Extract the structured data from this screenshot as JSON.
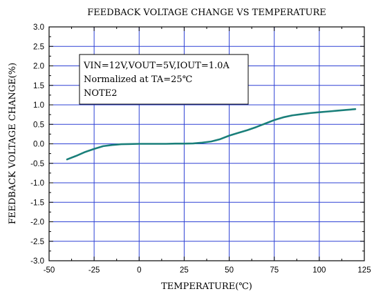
{
  "chart_data": {
    "type": "line",
    "title": "FEEDBACK VOLTAGE CHANGE VS TEMPERATURE",
    "xlabel": "TEMPERATURE(℃)",
    "ylabel": "FEEDBACK VOLTAGE CHANGE(%)",
    "xlim": [
      -50,
      125
    ],
    "ylim": [
      -3.0,
      3.0
    ],
    "xticks": [
      "-50",
      "-25",
      "0",
      "25",
      "50",
      "75",
      "100",
      "125"
    ],
    "yticks": [
      "3.0",
      "2.5",
      "2.0",
      "1.5",
      "1.0",
      "0.5",
      "0.0",
      "-0.5",
      "-1.0",
      "-1.5",
      "-2.0",
      "-2.5",
      "-3.0"
    ],
    "grid": true,
    "annotation": [
      "VIN=12V,VOUT=5V,IOUT=1.0A",
      "Normalized at TA=25℃",
      "NOTE2"
    ],
    "series": [
      {
        "x": [
          -40,
          -35,
          -30,
          -25,
          -20,
          -15,
          -10,
          -5,
          0,
          5,
          10,
          15,
          20,
          25,
          30,
          35,
          40,
          45,
          50,
          55,
          60,
          65,
          70,
          75,
          80,
          85,
          90,
          95,
          100,
          105,
          110,
          115,
          120
        ],
        "y": [
          -0.4,
          -0.31,
          -0.21,
          -0.13,
          -0.06,
          -0.03,
          -0.01,
          -0.005,
          0.0,
          0.0,
          0.0,
          0.0,
          0.005,
          0.005,
          0.01,
          0.03,
          0.06,
          0.12,
          0.21,
          0.28,
          0.35,
          0.43,
          0.52,
          0.61,
          0.68,
          0.73,
          0.76,
          0.79,
          0.81,
          0.83,
          0.85,
          0.87,
          0.89
        ],
        "color": "#1a7f7a"
      }
    ],
    "colors": {
      "grid": "#2b3fd4",
      "axis": "#000000",
      "line": "#1a7f7a"
    }
  }
}
